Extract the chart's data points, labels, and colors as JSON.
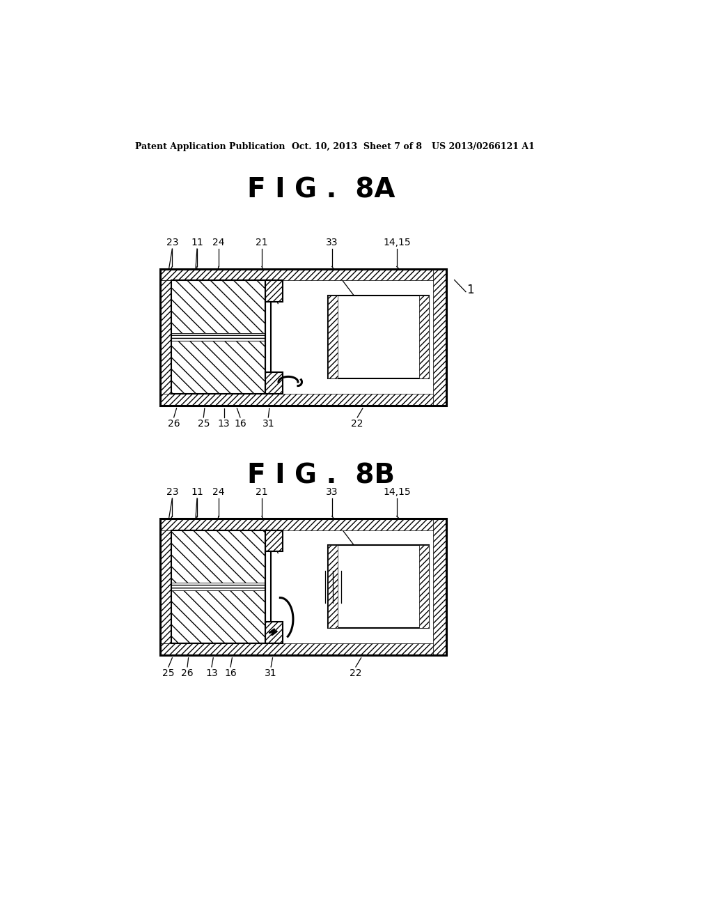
{
  "bg_color": "#ffffff",
  "header_left": "Patent Application Publication",
  "header_center": "Oct. 10, 2013  Sheet 7 of 8",
  "header_right": "US 2013/0266121 A1",
  "fig8a_title": "F I G .  8A",
  "fig8b_title": "F I G .  8B",
  "line_color": "#000000"
}
